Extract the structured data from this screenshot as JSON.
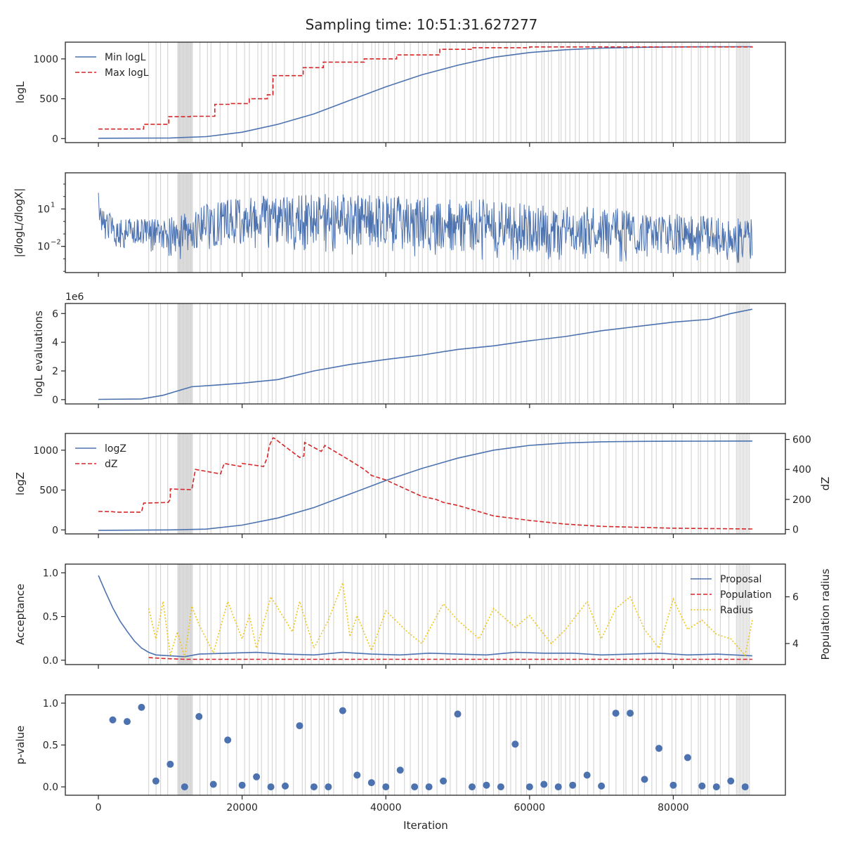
{
  "figure": {
    "title": "Sampling time: 10:51:31.627277",
    "x_label": "Iteration",
    "x_ticks": [
      0,
      20000,
      40000,
      60000,
      80000
    ],
    "x_tick_labels": [
      "0",
      "20000",
      "40000",
      "60000",
      "80000"
    ],
    "x_range": [
      -4600,
      95600
    ],
    "colors": {
      "blue": "#4c72b0",
      "red": "#d62728",
      "gold": "#f0c419",
      "shade": "#d3d3d3",
      "axis": "#262626"
    }
  },
  "chart_data": [
    {
      "type": "line",
      "ylabel": "logL",
      "ylim": [
        -50,
        1210
      ],
      "y_ticks": [
        0,
        500,
        1000
      ],
      "y_tick_labels": [
        "0",
        "500",
        "1000"
      ],
      "legend_position": "upper-left",
      "series": [
        {
          "name": "Min logL",
          "style": "solid",
          "color": "#4c72b0",
          "x": [
            0,
            10000,
            15000,
            20000,
            25000,
            30000,
            35000,
            40000,
            45000,
            50000,
            55000,
            60000,
            65000,
            70000,
            75000,
            80000,
            85000,
            91000
          ],
          "y": [
            5,
            8,
            25,
            80,
            180,
            310,
            480,
            650,
            800,
            920,
            1020,
            1080,
            1115,
            1135,
            1145,
            1150,
            1152,
            1153
          ]
        },
        {
          "name": "Max logL",
          "style": "step-dashed",
          "color": "#d62728",
          "x": [
            0,
            6300,
            9800,
            12800,
            16200,
            18500,
            21000,
            23500,
            24300,
            28500,
            31300,
            37000,
            41500,
            47500,
            52000,
            60000,
            91000
          ],
          "y": [
            120,
            180,
            275,
            280,
            430,
            440,
            500,
            550,
            790,
            890,
            960,
            1000,
            1050,
            1120,
            1140,
            1150,
            1155
          ]
        }
      ]
    },
    {
      "type": "line",
      "ylabel": "|dlogL/dlogX|",
      "log_scale": true,
      "ylim_log10": [
        -4.1,
        3.9
      ],
      "y_ticks_log10": [
        1,
        -2
      ],
      "y_tick_labels": [
        "10",
        "10"
      ],
      "y_tick_exponents": [
        "1",
        "−2"
      ],
      "series": [
        {
          "name": "",
          "color": "#4c72b0",
          "style": "noisy-band",
          "x": [
            0,
            500,
            2000,
            6000,
            10000,
            14000,
            18000,
            22000,
            26000,
            30000,
            35000,
            40000,
            50000,
            60000,
            70000,
            80000,
            86000,
            91000
          ],
          "upper_log10": [
            2.3,
            1.3,
            0.4,
            0.2,
            0.4,
            1.2,
            1.8,
            2.0,
            2.1,
            2.2,
            2.2,
            2.1,
            1.9,
            1.6,
            1.2,
            0.7,
            0.4,
            0.3
          ],
          "lower_log10": [
            -0.5,
            -1.4,
            -2.0,
            -2.4,
            -2.5,
            -2.2,
            -1.8,
            -1.7,
            -1.8,
            -1.9,
            -2.0,
            -2.1,
            -2.3,
            -2.5,
            -2.6,
            -2.7,
            -2.8,
            -3.0
          ]
        }
      ]
    },
    {
      "type": "line",
      "ylabel": "logL evaluations",
      "offset_label": "1e6",
      "ylim": [
        -0.3,
        6.7
      ],
      "y_ticks": [
        0,
        2,
        4,
        6
      ],
      "y_tick_labels": [
        "0",
        "2",
        "4",
        "6"
      ],
      "series": [
        {
          "name": "",
          "style": "solid",
          "color": "#4c72b0",
          "x": [
            0,
            6000,
            9000,
            12000,
            13000,
            16000,
            20000,
            25000,
            30000,
            35000,
            40000,
            45000,
            50000,
            55000,
            60000,
            65000,
            70000,
            75000,
            80000,
            85000,
            88000,
            91000
          ],
          "y": [
            0.02,
            0.05,
            0.3,
            0.75,
            0.9,
            1.0,
            1.15,
            1.4,
            2.0,
            2.45,
            2.8,
            3.1,
            3.5,
            3.75,
            4.1,
            4.4,
            4.8,
            5.1,
            5.4,
            5.6,
            6.0,
            6.3
          ]
        }
      ]
    },
    {
      "type": "line",
      "ylabel": "logZ",
      "ylim": [
        -50,
        1210
      ],
      "y_ticks": [
        0,
        500,
        1000
      ],
      "y_tick_labels": [
        "0",
        "500",
        "1000"
      ],
      "y2label": "dZ",
      "y2lim": [
        -30,
        640
      ],
      "y2_ticks": [
        0,
        200,
        400,
        600
      ],
      "y2_tick_labels": [
        "0",
        "200",
        "400",
        "600"
      ],
      "legend_position": "upper-left",
      "series": [
        {
          "name": "logZ",
          "axis": "left",
          "style": "solid",
          "color": "#4c72b0",
          "x": [
            0,
            10000,
            15000,
            20000,
            25000,
            30000,
            35000,
            40000,
            45000,
            50000,
            55000,
            60000,
            65000,
            70000,
            75000,
            80000,
            85000,
            91000
          ],
          "y": [
            -5,
            0,
            10,
            60,
            150,
            280,
            450,
            620,
            770,
            900,
            1000,
            1060,
            1090,
            1105,
            1110,
            1112,
            1113,
            1115
          ]
        },
        {
          "name": "dZ",
          "axis": "right",
          "style": "dashed",
          "color": "#d62728",
          "x": [
            0,
            2000,
            2500,
            6000,
            6300,
            9700,
            10000,
            10000,
            12800,
            13000,
            13500,
            17000,
            17500,
            19800,
            20000,
            23000,
            23500,
            23800,
            24300,
            24400,
            28000,
            28600,
            28700,
            31000,
            31300,
            31500,
            35000,
            37000,
            38000,
            40000,
            45000,
            47000,
            48000,
            50000,
            55000,
            60000,
            65000,
            70000,
            80000,
            91000
          ],
          "y": [
            120,
            118,
            115,
            115,
            175,
            180,
            200,
            270,
            265,
            265,
            400,
            370,
            440,
            420,
            440,
            420,
            480,
            560,
            610,
            610,
            480,
            490,
            580,
            520,
            540,
            560,
            460,
            400,
            360,
            330,
            220,
            200,
            180,
            160,
            90,
            60,
            35,
            20,
            8,
            3
          ]
        }
      ]
    },
    {
      "type": "line",
      "ylabel": "Acceptance",
      "ylim": [
        -0.05,
        1.1
      ],
      "y_ticks": [
        0.0,
        0.5,
        1.0
      ],
      "y_tick_labels": [
        "0.0",
        "0.5",
        "1.0"
      ],
      "y2label": "Population radius",
      "y2lim": [
        3.1,
        7.4
      ],
      "y2_ticks": [
        4,
        6
      ],
      "y2_tick_labels": [
        "4",
        "6"
      ],
      "legend_position": "upper-right",
      "series": [
        {
          "name": "Proposal",
          "axis": "left",
          "style": "solid",
          "color": "#4c72b0",
          "x": [
            0,
            1000,
            2000,
            3000,
            4000,
            5000,
            6000,
            7000,
            8000,
            10000,
            12000,
            14000,
            18000,
            22000,
            26000,
            30000,
            34000,
            38000,
            42000,
            46000,
            50000,
            54000,
            58000,
            62000,
            66000,
            70000,
            74000,
            78000,
            82000,
            86000,
            91000
          ],
          "y": [
            0.97,
            0.78,
            0.6,
            0.45,
            0.33,
            0.22,
            0.14,
            0.09,
            0.06,
            0.05,
            0.04,
            0.07,
            0.08,
            0.09,
            0.07,
            0.06,
            0.09,
            0.07,
            0.06,
            0.08,
            0.07,
            0.06,
            0.09,
            0.08,
            0.08,
            0.06,
            0.07,
            0.08,
            0.06,
            0.07,
            0.05
          ]
        },
        {
          "name": "Population",
          "axis": "left",
          "style": "dashed",
          "color": "#d62728",
          "x": [
            7000,
            9000,
            12000,
            20000,
            30000,
            40000,
            50000,
            60000,
            70000,
            80000,
            91000
          ],
          "y": [
            0.03,
            0.02,
            0.01,
            0.01,
            0.01,
            0.01,
            0.01,
            0.01,
            0.01,
            0.01,
            0.01
          ]
        },
        {
          "name": "Radius",
          "axis": "right",
          "style": "dotted",
          "color": "#f0c419",
          "x": [
            7000,
            8000,
            9000,
            10000,
            11000,
            12000,
            13000,
            14000,
            16000,
            18000,
            20000,
            21000,
            22000,
            24000,
            27000,
            28000,
            30000,
            32000,
            34000,
            35000,
            36000,
            38000,
            40000,
            43000,
            45000,
            48000,
            50000,
            53000,
            55000,
            58000,
            60000,
            63000,
            65000,
            68000,
            70000,
            72000,
            74000,
            76000,
            78000,
            80000,
            82000,
            84000,
            86000,
            88000,
            90000,
            91000
          ],
          "y": [
            5.5,
            4.2,
            5.8,
            3.5,
            4.5,
            3.4,
            5.6,
            4.8,
            3.6,
            5.8,
            4.2,
            5.2,
            3.8,
            6.0,
            4.5,
            5.8,
            3.8,
            5.0,
            6.6,
            4.3,
            5.2,
            3.7,
            5.4,
            4.5,
            4.0,
            5.7,
            5.0,
            4.2,
            5.5,
            4.7,
            5.2,
            4.0,
            4.6,
            5.8,
            4.2,
            5.5,
            6.0,
            4.6,
            3.8,
            5.9,
            4.6,
            5.0,
            4.4,
            4.2,
            3.5,
            5.0
          ]
        }
      ]
    },
    {
      "type": "scatter",
      "ylabel": "p-value",
      "ylim": [
        -0.1,
        1.1
      ],
      "y_ticks": [
        0.0,
        0.5,
        1.0
      ],
      "y_tick_labels": [
        "0.0",
        "0.5",
        "1.0"
      ],
      "series": [
        {
          "name": "",
          "color": "#4c72b0",
          "x": [
            2000,
            4000,
            6000,
            8000,
            10000,
            12000,
            14000,
            16000,
            18000,
            20000,
            22000,
            24000,
            26000,
            28000,
            30000,
            32000,
            34000,
            36000,
            38000,
            40000,
            42000,
            44000,
            46000,
            48000,
            50000,
            52000,
            54000,
            56000,
            58000,
            60000,
            62000,
            64000,
            66000,
            68000,
            70000,
            72000,
            74000,
            76000,
            78000,
            80000,
            82000,
            84000,
            86000,
            88000,
            90000
          ],
          "y": [
            0.8,
            0.78,
            0.95,
            0.07,
            0.27,
            0.0,
            0.84,
            0.03,
            0.56,
            0.02,
            0.12,
            0.0,
            0.01,
            0.73,
            0.0,
            0.0,
            0.91,
            0.14,
            0.05,
            0.0,
            0.2,
            0.0,
            0.0,
            0.07,
            0.87,
            0.0,
            0.02,
            0.0,
            0.51,
            0.0,
            0.03,
            0.0,
            0.02,
            0.14,
            0.01,
            0.88,
            0.88,
            0.09,
            0.46,
            0.02,
            0.35,
            0.01,
            0.0,
            0.07,
            0.0
          ]
        }
      ]
    }
  ]
}
